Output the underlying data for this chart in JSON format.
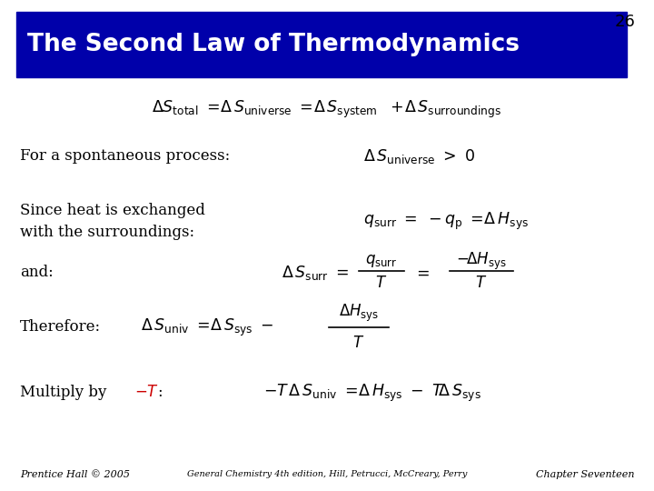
{
  "slide_number": "26",
  "title": "The Second Law of Thermodynamics",
  "title_bg_color": "#0000AA",
  "title_text_color": "#FFFFFF",
  "slide_bg_color": "#FFFFFF",
  "footer_left": "Prentice Hall © 2005",
  "footer_center": "General Chemistry 4th edition, Hill, Petrucci, McCreary, Perry",
  "footer_right": "Chapter Seventeen",
  "red_color": "#CC0000"
}
